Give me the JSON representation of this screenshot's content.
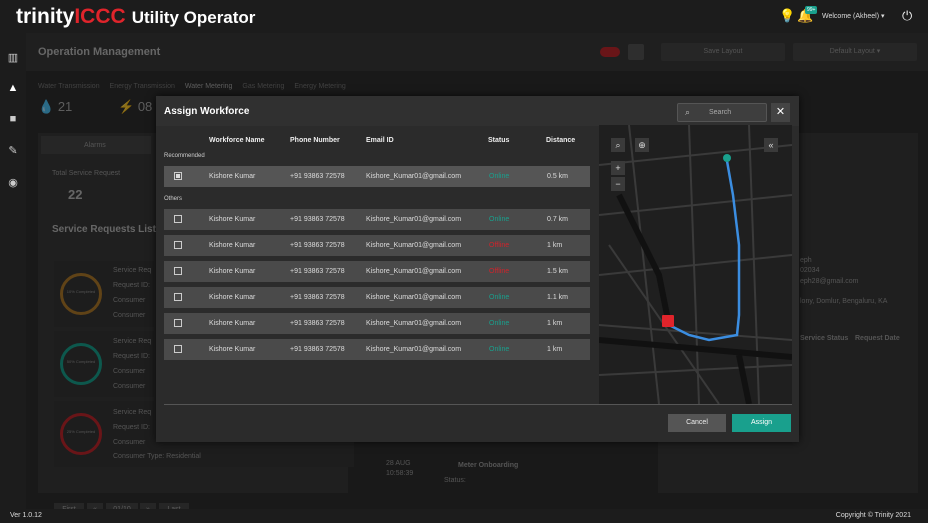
{
  "app": {
    "brand_prefix": "trinity",
    "brand_accent": "ICCC",
    "subtitle": "Utility Operator",
    "notif_badge": "99+",
    "welcome": "Welcome (Akheel)"
  },
  "background": {
    "title": "Operation Management",
    "save_layout": "Save Layout",
    "default_layout": "Default Layout",
    "tabs": [
      "Water Transmission",
      "Energy Transmission",
      "Water Metering",
      "Gas Metering",
      "Energy Metering"
    ],
    "stats": [
      "21",
      "08"
    ],
    "alarms_tab": "Alarms",
    "total_sr_label": "Total Service Request",
    "total_sr_value": "22",
    "sr_list_title": "Service Requests List",
    "sr_items": [
      {
        "ring": "10% Completed",
        "lines": [
          "Service Req",
          "Request ID:",
          "Consumer",
          "Consumer"
        ]
      },
      {
        "ring": "50% Completed",
        "lines": [
          "Service Req",
          "Request ID:",
          "Consumer",
          "Consumer"
        ]
      },
      {
        "ring": "25% Completed",
        "lines": [
          "Service Req",
          "Request ID:",
          "Consumer",
          "Consumer Type: Residential"
        ]
      }
    ],
    "pager": {
      "first": "First",
      "prev": "«",
      "page": "01/10",
      "next": "»",
      "last": "Last"
    },
    "timeline": {
      "date": "28 AUG",
      "time": "10:58:39",
      "event": "Meter Onboarding",
      "status": "Status:"
    },
    "right_panel": {
      "lines": [
        "eph",
        "02034",
        "eph28@gmail.com",
        "lony, Domlur, Bengaluru, KA"
      ],
      "service_status": "Service Status",
      "request_date": "Request Date"
    }
  },
  "modal": {
    "title": "Assign Workforce",
    "search_placeholder": "Search",
    "close": "✕",
    "columns": [
      "Workforce Name",
      "Phone Number",
      "Email ID",
      "Status",
      "Distance"
    ],
    "recommended_label": "Recommended",
    "others_label": "Others",
    "recommended": {
      "checked": true,
      "name": "Kishore Kumar",
      "phone": "+91 93863 72578",
      "email": "Kishore_Kumar01@gmail.com",
      "status": "Online",
      "distance": "0.5 km"
    },
    "others": [
      {
        "checked": false,
        "name": "Kishore Kumar",
        "phone": "+91 93863 72578",
        "email": "Kishore_Kumar01@gmail.com",
        "status": "Online",
        "distance": "0.7 km"
      },
      {
        "checked": false,
        "name": "Kishore Kumar",
        "phone": "+91 93863 72578",
        "email": "Kishore_Kumar01@gmail.com",
        "status": "Offline",
        "distance": "1 km"
      },
      {
        "checked": false,
        "name": "Kishore Kumar",
        "phone": "+91 93863 72578",
        "email": "Kishore_Kumar01@gmail.com",
        "status": "Offline",
        "distance": "1.5 km"
      },
      {
        "checked": false,
        "name": "Kishore Kumar",
        "phone": "+91 93863 72578",
        "email": "Kishore_Kumar01@gmail.com",
        "status": "Online",
        "distance": "1.1 km"
      },
      {
        "checked": false,
        "name": "Kishore Kumar",
        "phone": "+91 93863 72578",
        "email": "Kishore_Kumar01@gmail.com",
        "status": "Online",
        "distance": "1 km"
      },
      {
        "checked": false,
        "name": "Kishore Kumar",
        "phone": "+91 93863 72578",
        "email": "Kishore_Kumar01@gmail.com",
        "status": "Online",
        "distance": "1 km"
      }
    ],
    "cancel": "Cancel",
    "assign": "Assign"
  },
  "footer": {
    "version": "Ver 1.0.12",
    "copyright": "Copyright © Trinity 2021"
  },
  "colors": {
    "accent": "#19a08d",
    "brand_red": "#e0242b",
    "offline": "#d0232b",
    "route": "#3b8de0"
  }
}
